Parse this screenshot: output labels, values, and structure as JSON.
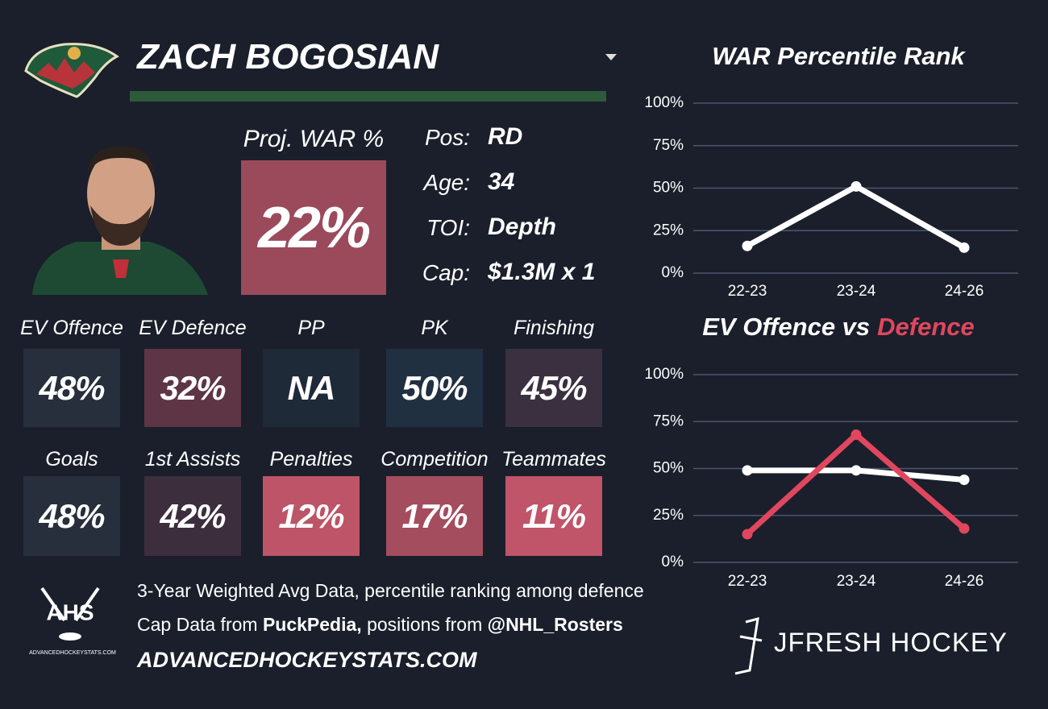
{
  "header": {
    "name": "ZACH BOGOSIAN"
  },
  "card": {
    "proj_label": "Proj. WAR %",
    "proj_value": "22%",
    "proj_color": "#9b4a5c",
    "info": [
      {
        "label": "Pos:",
        "value": "RD"
      },
      {
        "label": "Age:",
        "value": "34"
      },
      {
        "label": "TOI:",
        "value": "Depth"
      },
      {
        "label": "Cap:",
        "value": "$1.3M x 1"
      }
    ]
  },
  "tiles": [
    {
      "label": "EV Offence",
      "value": "48%",
      "color": "#272e3c"
    },
    {
      "label": "EV Defence",
      "value": "32%",
      "color": "#5e3544"
    },
    {
      "label": "PP",
      "value": "NA",
      "color": "#1f2a38"
    },
    {
      "label": "PK",
      "value": "50%",
      "color": "#213040"
    },
    {
      "label": "Finishing",
      "value": "45%",
      "color": "#3a3040"
    },
    {
      "label": "Goals",
      "value": "48%",
      "color": "#272e3c"
    },
    {
      "label": "1st Assists",
      "value": "42%",
      "color": "#3c2e3c"
    },
    {
      "label": "Penalties",
      "value": "12%",
      "color": "#bd5467"
    },
    {
      "label": "Competition",
      "value": "17%",
      "color": "#a34d5e"
    },
    {
      "label": "Teammates",
      "value": "11%",
      "color": "#c05468"
    }
  ],
  "footer": {
    "line1": "3-Year Weighted Avg Data, percentile ranking among defence",
    "line2": [
      {
        "text": "Cap Data from"
      },
      {
        "text": "PuckPedia,",
        "bold": true
      },
      {
        "text": "positions from"
      },
      {
        "text": "@NHL_Rosters",
        "bold": true
      }
    ],
    "site": "ADVANCEDHOCKEYSTATS.COM"
  },
  "logos": {
    "ahs": "AHS",
    "ahs_small": "ADVANCEDHOCKEYSTATS.COM",
    "brand": "JFRESH HOCKEY"
  },
  "chart_data": [
    {
      "type": "line",
      "title": [
        "WAR Percentile Rank"
      ],
      "categories": [
        "22-23",
        "23-24",
        "24-26"
      ],
      "series": [
        {
          "color": "#ffffff",
          "values": [
            16,
            51,
            15
          ]
        }
      ],
      "ylim": [
        0,
        100
      ],
      "yticks": [
        {
          "value": 0,
          "label": "0%"
        },
        {
          "value": 25,
          "label": "25%"
        },
        {
          "value": 50,
          "label": "50%"
        },
        {
          "value": 75,
          "label": "75%"
        },
        {
          "value": 100,
          "label": "100%"
        }
      ],
      "grid": true
    },
    {
      "type": "line",
      "title": [
        "EV Offence vs",
        "Defence"
      ],
      "title_colors": [
        "#ffffff",
        "#e0475e"
      ],
      "categories": [
        "22-23",
        "23-24",
        "24-26"
      ],
      "series": [
        {
          "color": "#ffffff",
          "values": [
            49,
            49,
            44
          ]
        },
        {
          "color": "#e0475e",
          "values": [
            15,
            68,
            18
          ]
        }
      ],
      "ylim": [
        0,
        100
      ],
      "yticks": [
        {
          "value": 0,
          "label": "0%"
        },
        {
          "value": 25,
          "label": "25%"
        },
        {
          "value": 50,
          "label": "50%"
        },
        {
          "value": 75,
          "label": "75%"
        },
        {
          "value": 100,
          "label": "100%"
        }
      ],
      "grid": true
    }
  ]
}
